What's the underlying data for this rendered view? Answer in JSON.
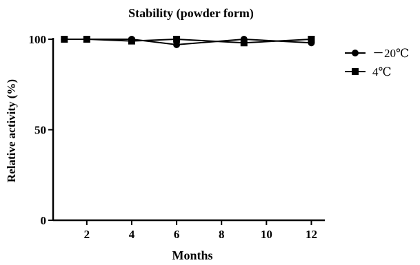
{
  "chart_data": {
    "type": "line",
    "title": "Stability (powder form)",
    "xlabel": "Months",
    "ylabel": "Relative activity (%)",
    "xlim": [
      0.5,
      12.6
    ],
    "ylim": [
      0,
      100
    ],
    "xticks": [
      2,
      4,
      6,
      8,
      10,
      12
    ],
    "yticks": [
      0,
      50,
      100
    ],
    "x_tick_labels": [
      "2",
      "4",
      "6",
      "8",
      "10",
      "12"
    ],
    "y_tick_labels": [
      "0",
      "50",
      "100"
    ],
    "grid": false,
    "legend_position": "right",
    "series": [
      {
        "name": "－20℃",
        "marker": "circle",
        "color": "#000000",
        "x": [
          1,
          2,
          4,
          6,
          9,
          12
        ],
        "y": [
          100,
          100,
          100,
          97,
          100,
          98
        ]
      },
      {
        "name": "4℃",
        "marker": "square",
        "color": "#000000",
        "x": [
          1,
          2,
          4,
          6,
          9,
          12
        ],
        "y": [
          100,
          100,
          99,
          100,
          98,
          100
        ]
      }
    ]
  }
}
